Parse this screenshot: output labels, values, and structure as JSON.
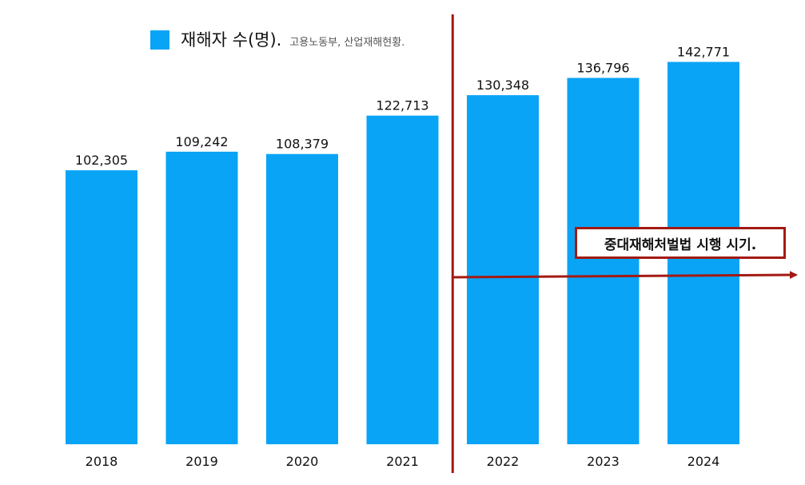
{
  "chart_data": {
    "type": "bar",
    "title": "",
    "xlabel": "",
    "ylabel": "",
    "ylim": [
      0,
      145000
    ],
    "grid": false,
    "legend_position": "top-left",
    "categories": [
      "2018",
      "2019",
      "2020",
      "2021",
      "2022",
      "2023",
      "2024"
    ],
    "series": [
      {
        "name": "재해자 수(명).",
        "values": [
          102305,
          109242,
          108379,
          122713,
          130348,
          136796,
          142771
        ],
        "labels": [
          "102,305",
          "109,242",
          "108,379",
          "122,713",
          "130,348",
          "136,796",
          "142,771"
        ]
      }
    ],
    "source_note": "고용노동부, 산업재해현황.",
    "annotation": {
      "text": "중대재해처벌법 시행 시기.",
      "divider_between": [
        "2021",
        "2022"
      ]
    },
    "colors": {
      "bar": "#0aa4f6",
      "annotation": "#a31a12"
    }
  }
}
